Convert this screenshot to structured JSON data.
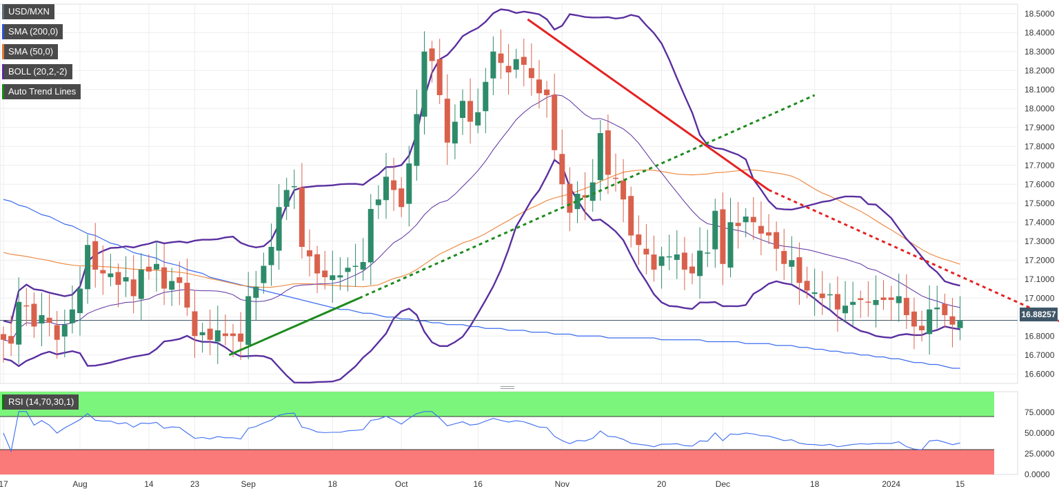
{
  "instrument": "USD/MXN",
  "last_price": "16.88257",
  "legend": [
    {
      "label": "USD/MXN",
      "color": "#5c6b77"
    },
    {
      "label": "SMA (200,0)",
      "color": "#2f4fd8"
    },
    {
      "label": "SMA (50,0)",
      "color": "#e07a35"
    },
    {
      "label": "BOLL (20,2,-2)",
      "color": "#5b2a9c"
    },
    {
      "label": "Auto Trend Lines",
      "color": "#138a13"
    }
  ],
  "rsi_label": "RSI (14,70,30,1)",
  "colors": {
    "up": "#2e8b6a",
    "down": "#d9614c",
    "sma200": "#3b6cf0",
    "sma50": "#ef8c46",
    "boll": "#5a2fa0",
    "trend_green": "#1d8b1d",
    "trend_red": "#e52222",
    "rsi_line": "#3b6cf0",
    "rsi_overbought": "#7cf57c",
    "rsi_oversold": "#fa7a7a"
  },
  "chart_data": {
    "type": "candlestick",
    "price_axis": {
      "min": 16.55,
      "max": 18.55,
      "ticks": [
        "16.6000",
        "16.7000",
        "16.8000",
        "16.9000",
        "17.0000",
        "17.1000",
        "17.2000",
        "17.3000",
        "17.4000",
        "17.5000",
        "17.6000",
        "17.7000",
        "17.8000",
        "17.9000",
        "18.0000",
        "18.1000",
        "18.2000",
        "18.3000",
        "18.4000",
        "18.5000"
      ]
    },
    "x_labels": [
      {
        "label": "17",
        "i": 0
      },
      {
        "label": "Aug",
        "i": 10
      },
      {
        "label": "14",
        "i": 19
      },
      {
        "label": "23",
        "i": 25
      },
      {
        "label": "Sep",
        "i": 32
      },
      {
        "label": "18",
        "i": 43
      },
      {
        "label": "Oct",
        "i": 52
      },
      {
        "label": "16",
        "i": 62
      },
      {
        "label": "Nov",
        "i": 73
      },
      {
        "label": "20",
        "i": 86
      },
      {
        "label": "Dec",
        "i": 94
      },
      {
        "label": "18",
        "i": 106
      },
      {
        "label": "2024",
        "i": 116
      },
      {
        "label": "15",
        "i": 125
      }
    ],
    "close": [
      16.78,
      16.76,
      16.98,
      16.96,
      16.85,
      16.91,
      16.87,
      16.78,
      16.86,
      16.94,
      17.05,
      17.28,
      17.15,
      17.13,
      17.13,
      17.07,
      17.11,
      17.01,
      17.15,
      17.14,
      17.18,
      17.05,
      17.09,
      17.08,
      16.95,
      16.8,
      16.82,
      16.78,
      16.83,
      16.8,
      16.8,
      16.77,
      17.01,
      17.06,
      17.17,
      17.27,
      17.48,
      17.57,
      17.59,
      17.27,
      17.22,
      17.13,
      17.11,
      17.12,
      17.12,
      17.16,
      17.17,
      17.19,
      17.47,
      17.52,
      17.64,
      17.57,
      17.48,
      17.71,
      17.97,
      18.3,
      18.25,
      18.07,
      17.82,
      17.93,
      18.04,
      17.93,
      17.98,
      18.14,
      18.3,
      18.24,
      18.19,
      18.26,
      18.23,
      18.16,
      18.08,
      18.07,
      17.78,
      17.6,
      17.45,
      17.55,
      17.53,
      17.61,
      17.87,
      17.65,
      17.63,
      17.52,
      17.33,
      17.28,
      17.23,
      17.15,
      17.22,
      17.22,
      17.23,
      17.15,
      17.13,
      17.25,
      17.24,
      17.46,
      17.18,
      17.4,
      17.38,
      17.43,
      17.4,
      17.34,
      17.33,
      17.26,
      17.18,
      17.2,
      17.08,
      17.04,
      17.03,
      17.0,
      17.02,
      16.94,
      16.96,
      16.98,
      16.99,
      16.98,
      16.99,
      16.99,
      16.99,
      17.01,
      16.91,
      16.85,
      16.83,
      16.94,
      16.95,
      16.91,
      16.86,
      16.88
    ],
    "sma200": [
      17.52,
      17.51,
      17.49,
      17.48,
      17.46,
      17.44,
      17.43,
      17.41,
      17.39,
      17.38,
      17.36,
      17.34,
      17.33,
      17.31,
      17.29,
      17.28,
      17.26,
      17.24,
      17.23,
      17.22,
      17.21,
      17.19,
      17.18,
      17.17,
      17.15,
      17.14,
      17.13,
      17.11,
      17.1,
      17.09,
      17.08,
      17.07,
      17.06,
      17.05,
      17.04,
      17.03,
      17.02,
      17.01,
      17.0,
      16.99,
      16.98,
      16.97,
      16.96,
      16.95,
      16.94,
      16.94,
      16.93,
      16.92,
      16.92,
      16.91,
      16.9,
      16.9,
      16.89,
      16.89,
      16.88,
      16.88,
      16.87,
      16.87,
      16.86,
      16.86,
      16.86,
      16.85,
      16.85,
      16.84,
      16.84,
      16.84,
      16.83,
      16.83,
      16.83,
      16.82,
      16.82,
      16.82,
      16.81,
      16.81,
      16.81,
      16.8,
      16.8,
      16.8,
      16.8,
      16.79,
      16.79,
      16.79,
      16.79,
      16.79,
      16.79,
      16.79,
      16.78,
      16.78,
      16.78,
      16.78,
      16.78,
      16.78,
      16.77,
      16.77,
      16.77,
      16.77,
      16.77,
      16.76,
      16.76,
      16.76,
      16.76,
      16.75,
      16.75,
      16.75,
      16.74,
      16.74,
      16.73,
      16.73,
      16.72,
      16.72,
      16.71,
      16.71,
      16.7,
      16.7,
      16.69,
      16.69,
      16.68,
      16.68,
      16.67,
      16.66,
      16.66,
      16.65,
      16.65,
      16.64,
      16.63,
      16.63
    ],
    "rsi": {
      "ylim": [
        0,
        100
      ],
      "ticks": [
        "0.0000",
        "25.0000",
        "50.0000",
        "75.0000"
      ],
      "overbought": 70,
      "oversold": 30
    }
  }
}
